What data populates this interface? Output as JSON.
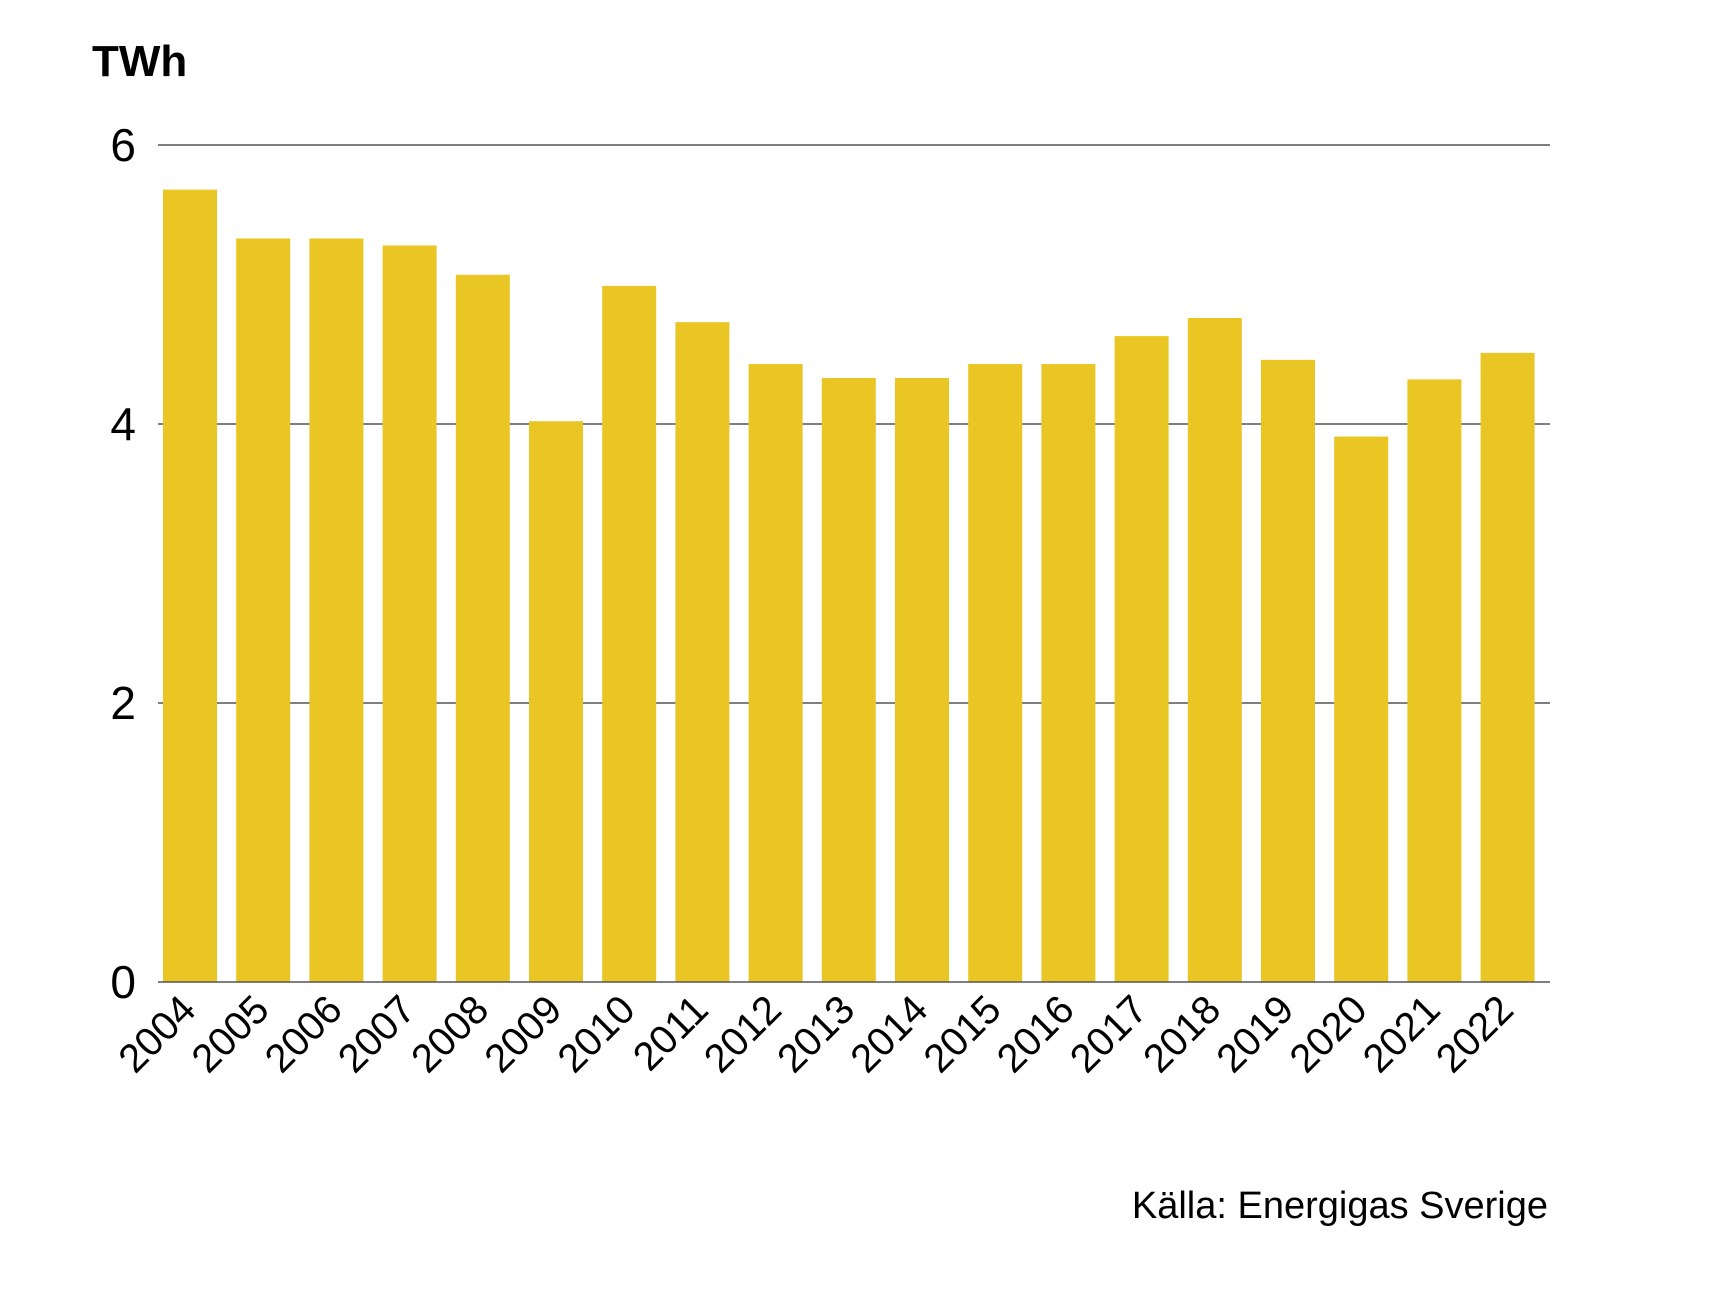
{
  "chart_data": {
    "type": "bar",
    "ylabel": "TWh",
    "categories": [
      "2004",
      "2005",
      "2006",
      "2007",
      "2008",
      "2009",
      "2010",
      "2011",
      "2012",
      "2013",
      "2014",
      "2015",
      "2016",
      "2017",
      "2018",
      "2019",
      "2020",
      "2021",
      "2022"
    ],
    "values": [
      5.68,
      5.33,
      5.33,
      5.28,
      5.07,
      4.02,
      4.99,
      4.73,
      4.43,
      4.33,
      4.33,
      4.43,
      4.43,
      4.63,
      4.76,
      4.46,
      3.91,
      4.32,
      4.51
    ],
    "ylim": [
      0,
      6
    ],
    "yticks": [
      0,
      2,
      4,
      6
    ],
    "grid": true,
    "bar_color": "#E9C624",
    "source": "Källa: Energigas Sverige"
  }
}
